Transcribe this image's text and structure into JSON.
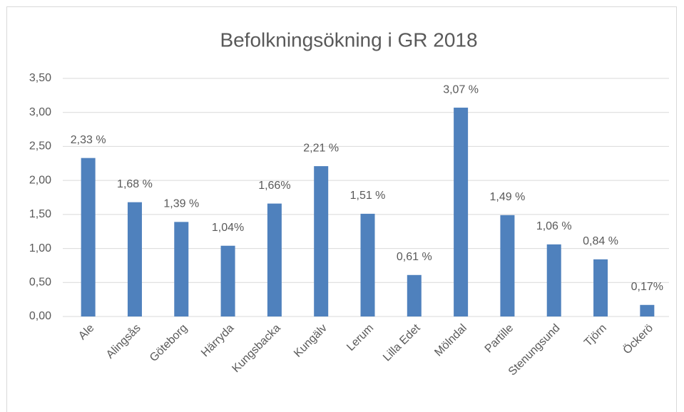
{
  "chart_data": {
    "type": "bar",
    "title": "Befolkningsökning i GR 2018",
    "categories": [
      "Ale",
      "Alingsås",
      "Göteborg",
      "Härryda",
      "Kungsbacka",
      "Kungälv",
      "Lerum",
      "Lilla Edet",
      "Mölndal",
      "Partille",
      "Stenungsund",
      "Tjörn",
      "Öckerö"
    ],
    "values": [
      2.33,
      1.68,
      1.39,
      1.04,
      1.66,
      2.21,
      1.51,
      0.61,
      3.07,
      1.49,
      1.06,
      0.84,
      0.17
    ],
    "value_labels": [
      "2,33 %",
      "1,68 %",
      "1,39 %",
      "1,04%",
      "1,66%",
      "2,21 %",
      "1,51 %",
      "0,61 %",
      "3,07 %",
      "1,49 %",
      "1,06 %",
      "0,84 %",
      "0,17%"
    ],
    "color": "#4f81bd",
    "ylim": [
      0,
      3.5
    ],
    "yticks": [
      {
        "value": 0,
        "label": "0,00"
      },
      {
        "value": 0.5,
        "label": "0,50"
      },
      {
        "value": 1,
        "label": "1,00"
      },
      {
        "value": 1.5,
        "label": "1,50"
      },
      {
        "value": 2,
        "label": "2,00"
      },
      {
        "value": 2.5,
        "label": "2,50"
      },
      {
        "value": 3,
        "label": "3,00"
      },
      {
        "value": 3.5,
        "label": "3,50"
      }
    ],
    "grid": true
  }
}
